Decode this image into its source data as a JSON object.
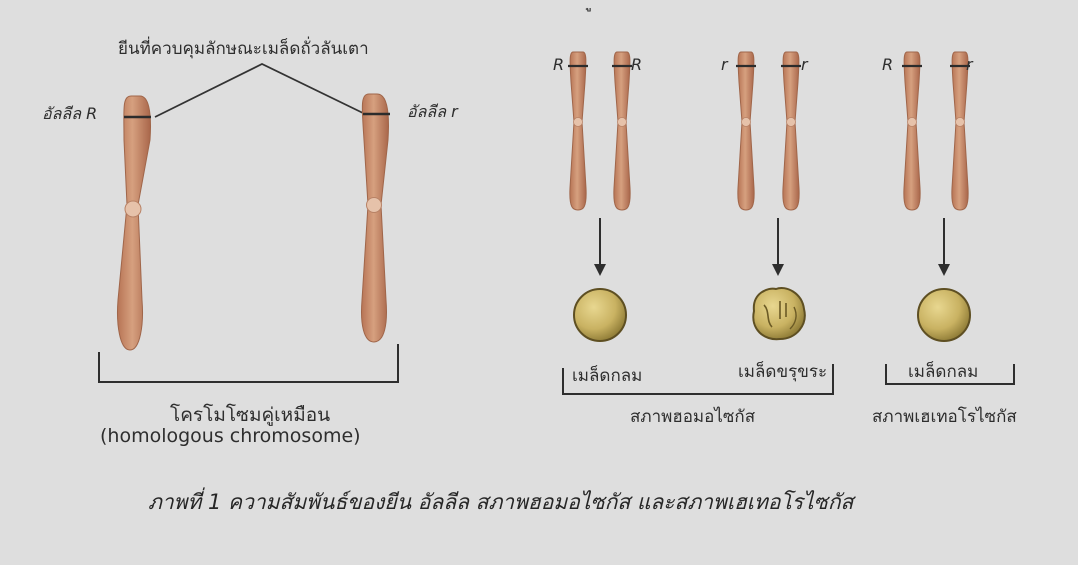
{
  "top_cutoff_text": "ู",
  "gene_locus_label": "ยีนที่ควบคุมลักษณะเมล็ดถั่วลันเตา",
  "left_pair": {
    "allele_left": "อัลลีล R",
    "allele_right": "อัลลีล r",
    "group_label_thai": "โครโมโซมคู่เหมือน",
    "group_label_en": "(homologous chromosome)"
  },
  "genotype_pairs": [
    {
      "left_allele": "R",
      "right_allele": "R",
      "seed": "round",
      "seed_label": "เมล็ดกลม"
    },
    {
      "left_allele": "r",
      "right_allele": "r",
      "seed": "wrinkled",
      "seed_label": "เมล็ดขรุขระ"
    },
    {
      "left_allele": "R",
      "right_allele": "r",
      "seed": "round",
      "seed_label": "เมล็ดกลม"
    }
  ],
  "state_labels": {
    "homozygous": "สภาพฮอมอไซกัส",
    "heterozygous": "สภาพเฮเทอโรไซกัส"
  },
  "caption": "ภาพที่ 1 ความสัมพันธ์ของยีน อัลลีล สภาพฮอมอไซกัส และสภาพเฮเทอโรไซกัส",
  "colors": {
    "chromosome": "#c98c6c",
    "chromosome_edge": "#a0664a",
    "centromere": "#e5c0a6",
    "seed": "#cdb96a",
    "seed_edge": "#5e4f22",
    "line": "#333333",
    "background": "#dedede"
  }
}
